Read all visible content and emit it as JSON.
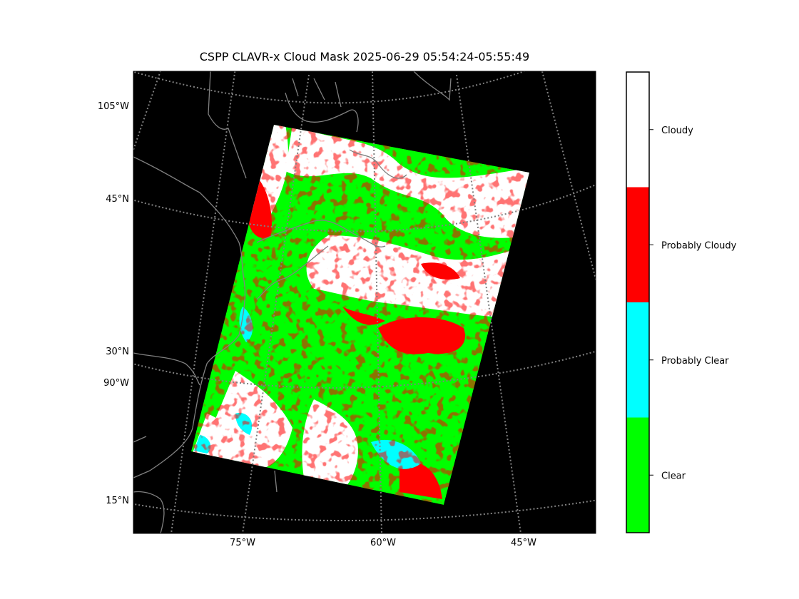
{
  "title": "CSPP CLAVR-x Cloud Mask 2025-06-29 05:54:24-05:55:49",
  "map_labels": {
    "left": [
      "105°W",
      "45°N",
      "30°N",
      "90°W",
      "15°N"
    ],
    "bottom": [
      "75°W",
      "60°W",
      "45°W"
    ]
  },
  "colorbar": {
    "classes": [
      {
        "label": "Cloudy",
        "color": "#ffffff"
      },
      {
        "label": "Probably Cloudy",
        "color": "#ff0000"
      },
      {
        "label": "Probably Clear",
        "color": "#00ffff"
      },
      {
        "label": "Clear",
        "color": "#00ff00"
      }
    ]
  },
  "colors": {
    "background": "#000000",
    "coastline": "#808080",
    "graticule": "#808080"
  }
}
